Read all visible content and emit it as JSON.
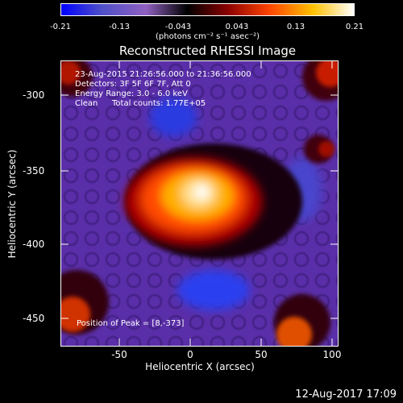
{
  "colorbar": {
    "ticks": [
      "-0.21",
      "-0.13",
      "-0.043",
      "0.043",
      "0.13",
      "0.21"
    ],
    "units": "(photons cm⁻² s⁻¹ asec⁻²)"
  },
  "title": "Reconstructed RHESSI Image",
  "info": {
    "line1": "23-Aug-2015 21:26:56.000 to 21:36:56.000",
    "line2": "Detectors: 3F 5F 6F 7F, Att 0",
    "line3": "Energy Range: 3.0 - 6.0 keV",
    "line4a": "Clean",
    "line4b": "Total counts: 1.77E+05"
  },
  "peak": "Position of Peak = [8,-373]",
  "axes": {
    "xlabel": "Heliocentric X (arcsec)",
    "ylabel": "Heliocentric Y (arcsec)",
    "xticks": [
      "-50",
      "0",
      "50",
      "100"
    ],
    "yticks": [
      "-300",
      "-350",
      "-400",
      "-450"
    ]
  },
  "footer": "12-Aug-2017 17:09",
  "colors": {
    "colormap": [
      "#0000ff",
      "#5050c8",
      "#9060c0",
      "#000000",
      "#8c0000",
      "#ff4400",
      "#ffc000",
      "#ffffff"
    ]
  }
}
